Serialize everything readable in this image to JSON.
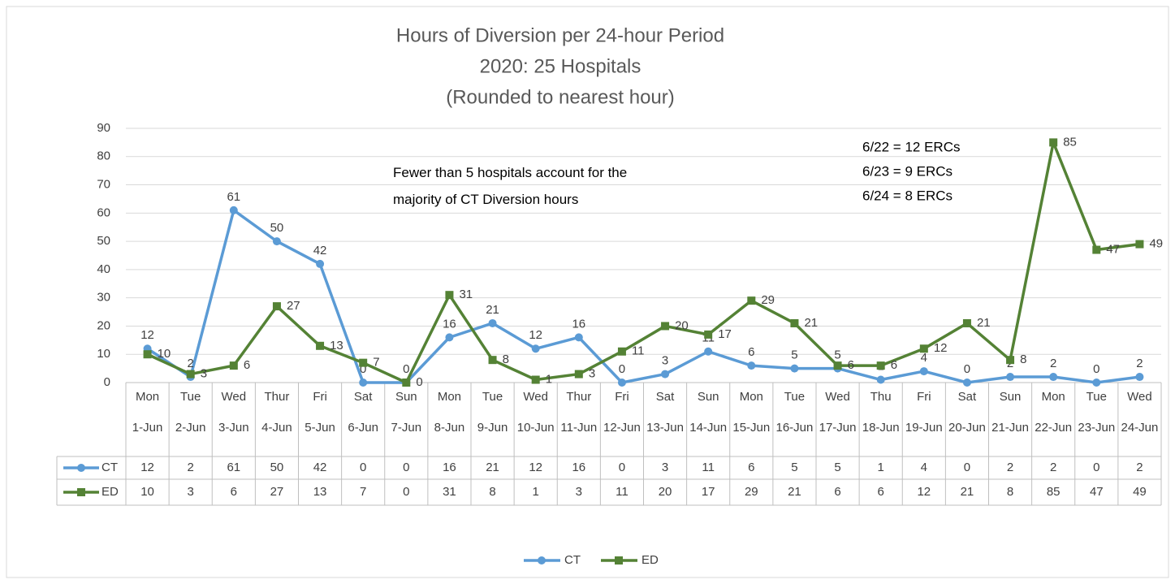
{
  "chart_data": {
    "type": "line",
    "title": [
      "Hours of Diversion per 24-hour Period",
      "2020:  25 Hospitals",
      "(Rounded to nearest hour)"
    ],
    "categories": [
      [
        "Mon",
        "1-Jun"
      ],
      [
        "Tue",
        "2-Jun"
      ],
      [
        "Wed",
        "3-Jun"
      ],
      [
        "Thur",
        "4-Jun"
      ],
      [
        "Fri",
        "5-Jun"
      ],
      [
        "Sat",
        "6-Jun"
      ],
      [
        "Sun",
        "7-Jun"
      ],
      [
        "Mon",
        "8-Jun"
      ],
      [
        "Tue",
        "9-Jun"
      ],
      [
        "Wed",
        "10-Jun"
      ],
      [
        "Thur",
        "11-Jun"
      ],
      [
        "Fri",
        "12-Jun"
      ],
      [
        "Sat",
        "13-Jun"
      ],
      [
        "Sun",
        "14-Jun"
      ],
      [
        "Mon",
        "15-Jun"
      ],
      [
        "Tue",
        "16-Jun"
      ],
      [
        "Wed",
        "17-Jun"
      ],
      [
        "Thu",
        "18-Jun"
      ],
      [
        "Fri",
        "19-Jun"
      ],
      [
        "Sat",
        "20-Jun"
      ],
      [
        "Sun",
        "21-Jun"
      ],
      [
        "Mon",
        "22-Jun"
      ],
      [
        "Tue",
        "23-Jun"
      ],
      [
        "Wed",
        "24-Jun"
      ]
    ],
    "series": [
      {
        "name": "CT",
        "color": "#5b9bd5",
        "values": [
          12,
          2,
          61,
          50,
          42,
          0,
          0,
          16,
          21,
          12,
          16,
          0,
          3,
          11,
          6,
          5,
          5,
          1,
          4,
          0,
          2,
          2,
          0,
          2
        ]
      },
      {
        "name": "ED",
        "color": "#548235",
        "values": [
          10,
          3,
          6,
          27,
          13,
          7,
          0,
          31,
          8,
          1,
          3,
          11,
          20,
          17,
          29,
          21,
          6,
          6,
          12,
          21,
          8,
          85,
          47,
          49
        ]
      }
    ],
    "ylim": [
      0,
      90
    ],
    "yticks": [
      0,
      10,
      20,
      30,
      40,
      50,
      60,
      70,
      80,
      90
    ],
    "grid": true,
    "legend": "bottom",
    "annotations": [
      "Fewer than 5 hospitals account for the majority of CT Diversion hours",
      "6/22 = 12 ERCs",
      "6/23 = 9 ERCs",
      "6/24 = 8 ERCs"
    ]
  }
}
